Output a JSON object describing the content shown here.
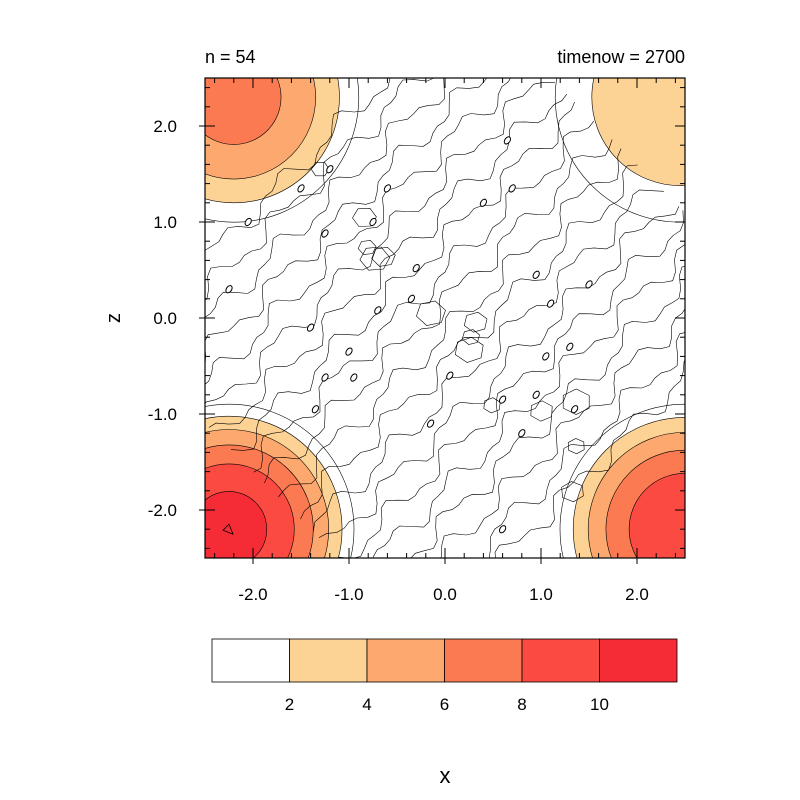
{
  "chart_data": {
    "type": "contour",
    "title_left": "n = 54",
    "title_right": "timenow = 2700",
    "xlabel": "x",
    "ylabel": "z",
    "xlim": [
      -2.5,
      2.5
    ],
    "ylim": [
      -2.5,
      2.5
    ],
    "x_ticks": [
      {
        "value": -2.0,
        "label": "-2.0"
      },
      {
        "value": -1.0,
        "label": "-1.0"
      },
      {
        "value": 0.0,
        "label": "0.0"
      },
      {
        "value": 1.0,
        "label": "1.0"
      },
      {
        "value": 2.0,
        "label": "2.0"
      }
    ],
    "y_ticks": [
      {
        "value": 2.0,
        "label": "2.0"
      },
      {
        "value": 1.0,
        "label": "1.0"
      },
      {
        "value": 0.0,
        "label": "0.0"
      },
      {
        "value": -1.0,
        "label": "-1.0"
      },
      {
        "value": -2.0,
        "label": "-2.0"
      }
    ],
    "colorbar": {
      "levels": [
        2,
        4,
        6,
        8,
        10
      ],
      "level_labels": [
        "2",
        "4",
        "6",
        "8",
        "10"
      ],
      "colors": [
        "#ffffff",
        "#fdd395",
        "#fca86e",
        "#fc7a52",
        "#fb4a42",
        "#f52b36"
      ]
    },
    "hotspots": [
      {
        "center": [
          -2.25,
          -2.2
        ],
        "peak": 11
      },
      {
        "center": [
          -2.2,
          2.3
        ],
        "peak": 7
      },
      {
        "center": [
          2.5,
          -2.2
        ],
        "peak": 10
      },
      {
        "center": [
          2.45,
          2.3
        ],
        "peak": 4
      }
    ],
    "zero_labels": [
      [
        -2.05,
        1.0
      ],
      [
        -2.25,
        0.3
      ],
      [
        -1.25,
        0.88
      ],
      [
        -1.5,
        1.35
      ],
      [
        -1.2,
        1.55
      ],
      [
        -0.6,
        1.35
      ],
      [
        -0.75,
        1.0
      ],
      [
        -0.3,
        0.52
      ],
      [
        -0.35,
        0.2
      ],
      [
        -0.7,
        0.08
      ],
      [
        -1.4,
        -0.1
      ],
      [
        -1.0,
        -0.35
      ],
      [
        -1.25,
        -0.62
      ],
      [
        -0.95,
        -0.62
      ],
      [
        -1.35,
        -0.95
      ],
      [
        -0.15,
        -1.1
      ],
      [
        0.05,
        -0.6
      ],
      [
        0.4,
        1.2
      ],
      [
        0.7,
        1.35
      ],
      [
        0.65,
        1.85
      ],
      [
        0.95,
        0.45
      ],
      [
        1.1,
        0.15
      ],
      [
        1.5,
        0.35
      ],
      [
        1.3,
        -0.3
      ],
      [
        1.05,
        -0.4
      ],
      [
        0.6,
        -0.85
      ],
      [
        0.95,
        -0.8
      ],
      [
        1.35,
        -0.95
      ],
      [
        0.8,
        -1.2
      ],
      [
        0.6,
        -2.2
      ]
    ]
  }
}
